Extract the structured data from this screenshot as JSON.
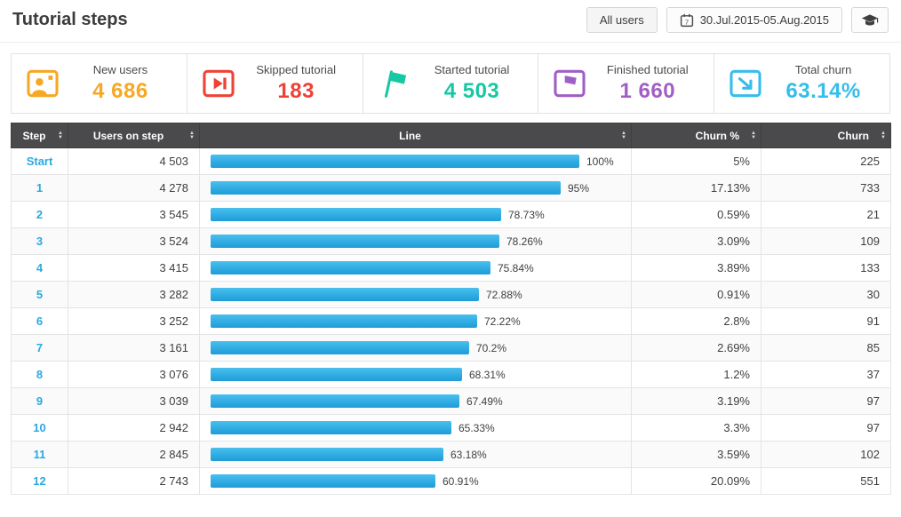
{
  "header": {
    "title": "Tutorial steps",
    "all_users_label": "All users",
    "date_range": "30.Jul.2015-05.Aug.2015",
    "date_icon": "calendar-icon",
    "tutorial_icon": "graduation-cap-icon"
  },
  "stats": [
    {
      "label": "New users",
      "value": "4 686",
      "color": "#f7a823",
      "icon": "user-photo-icon"
    },
    {
      "label": "Skipped tutorial",
      "value": "183",
      "color": "#ef4136",
      "icon": "skip-icon"
    },
    {
      "label": "Started tutorial",
      "value": "4 503",
      "color": "#17c9a2",
      "icon": "start-flag-icon"
    },
    {
      "label": "Finished tutorial",
      "value": "1 660",
      "color": "#a15fc6",
      "icon": "finish-flag-icon"
    },
    {
      "label": "Total churn",
      "value": "63.14%",
      "color": "#35bdec",
      "icon": "churn-exit-icon"
    }
  ],
  "table": {
    "columns": [
      "Step",
      "Users on step",
      "Line",
      "Churn %",
      "Churn"
    ],
    "rows": [
      {
        "step": "Start",
        "users": "4 503",
        "line_pct": 100,
        "line_label": "100%",
        "churn_pct": "5%",
        "churn": "225"
      },
      {
        "step": "1",
        "users": "4 278",
        "line_pct": 95,
        "line_label": "95%",
        "churn_pct": "17.13%",
        "churn": "733"
      },
      {
        "step": "2",
        "users": "3 545",
        "line_pct": 78.73,
        "line_label": "78.73%",
        "churn_pct": "0.59%",
        "churn": "21"
      },
      {
        "step": "3",
        "users": "3 524",
        "line_pct": 78.26,
        "line_label": "78.26%",
        "churn_pct": "3.09%",
        "churn": "109"
      },
      {
        "step": "4",
        "users": "3 415",
        "line_pct": 75.84,
        "line_label": "75.84%",
        "churn_pct": "3.89%",
        "churn": "133"
      },
      {
        "step": "5",
        "users": "3 282",
        "line_pct": 72.88,
        "line_label": "72.88%",
        "churn_pct": "0.91%",
        "churn": "30"
      },
      {
        "step": "6",
        "users": "3 252",
        "line_pct": 72.22,
        "line_label": "72.22%",
        "churn_pct": "2.8%",
        "churn": "91"
      },
      {
        "step": "7",
        "users": "3 161",
        "line_pct": 70.2,
        "line_label": "70.2%",
        "churn_pct": "2.69%",
        "churn": "85"
      },
      {
        "step": "8",
        "users": "3 076",
        "line_pct": 68.31,
        "line_label": "68.31%",
        "churn_pct": "1.2%",
        "churn": "37"
      },
      {
        "step": "9",
        "users": "3 039",
        "line_pct": 67.49,
        "line_label": "67.49%",
        "churn_pct": "3.19%",
        "churn": "97"
      },
      {
        "step": "10",
        "users": "2 942",
        "line_pct": 65.33,
        "line_label": "65.33%",
        "churn_pct": "3.3%",
        "churn": "97"
      },
      {
        "step": "11",
        "users": "2 845",
        "line_pct": 63.18,
        "line_label": "63.18%",
        "churn_pct": "3.59%",
        "churn": "102"
      },
      {
        "step": "12",
        "users": "2 743",
        "line_pct": 60.91,
        "line_label": "60.91%",
        "churn_pct": "20.09%",
        "churn": "551"
      }
    ]
  }
}
